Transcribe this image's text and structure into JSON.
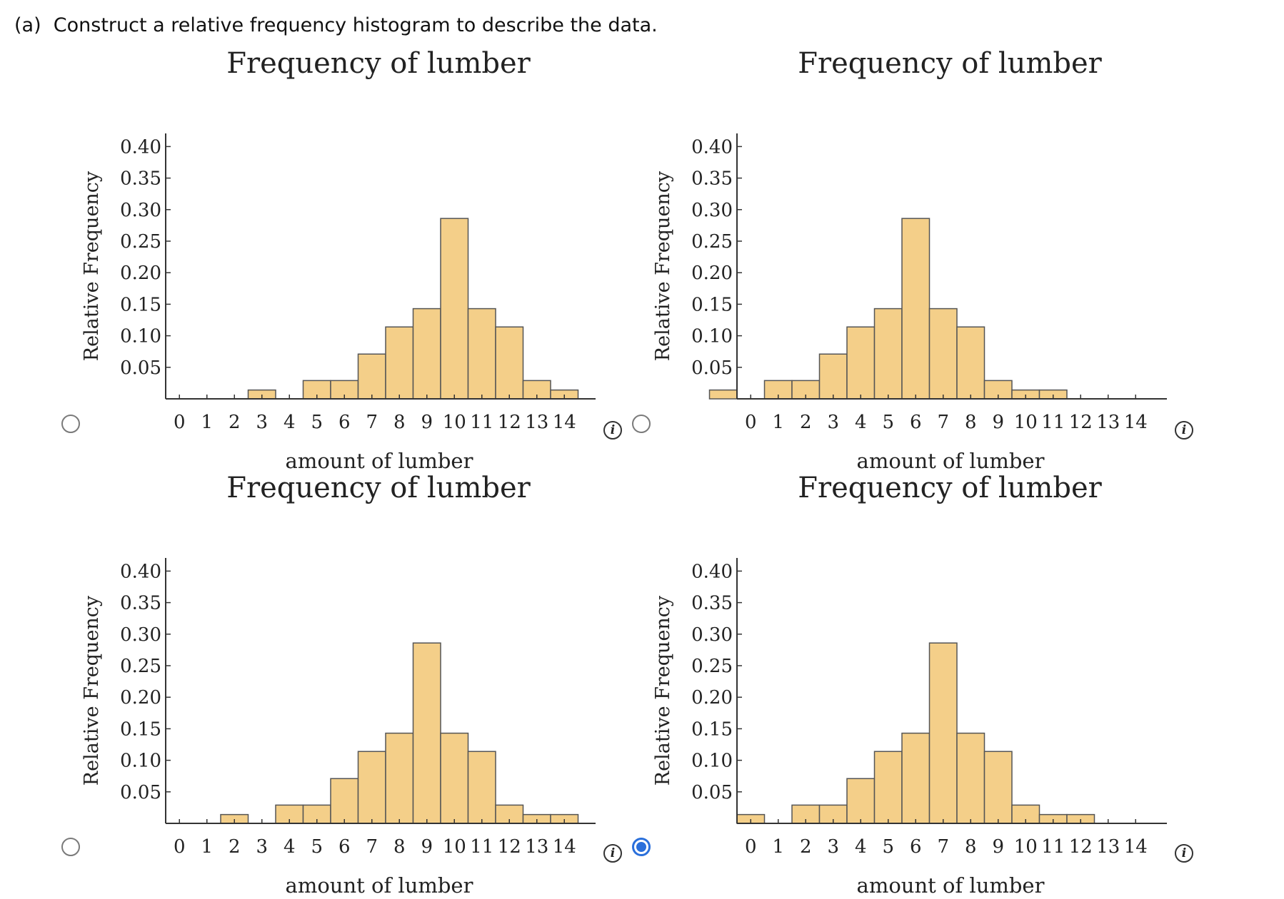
{
  "question": {
    "label": "(a)",
    "text": "Construct a relative frequency histogram to describe the data."
  },
  "selected_option": 3,
  "chart_data": [
    {
      "type": "bar",
      "title": "Frequency of lumber",
      "xlabel": "amount of lumber",
      "ylabel": "Relative Frequency",
      "x_ticks": [
        "0",
        "1",
        "2",
        "3",
        "4",
        "5",
        "6",
        "7",
        "8",
        "9",
        "10",
        "11",
        "12",
        "13",
        "14"
      ],
      "y_ticks": [
        "0.05",
        "0.10",
        "0.15",
        "0.20",
        "0.25",
        "0.30",
        "0.35",
        "0.40"
      ],
      "ylim": [
        0,
        0.42
      ],
      "bin_starts": [
        0,
        1,
        2,
        3,
        4,
        5,
        6,
        7,
        8,
        9,
        10,
        11,
        12,
        13,
        14
      ],
      "values": [
        0,
        0,
        0,
        0.014,
        0,
        0.029,
        0.029,
        0.071,
        0.114,
        0.143,
        0.286,
        0.143,
        0.114,
        0.029,
        0.014
      ],
      "bar_color": "#f4cf89",
      "grid": false
    },
    {
      "type": "bar",
      "title": "Frequency of lumber",
      "xlabel": "amount of lumber",
      "ylabel": "Relative Frequency",
      "x_ticks": [
        "0",
        "1",
        "2",
        "3",
        "4",
        "5",
        "6",
        "7",
        "8",
        "9",
        "10",
        "11",
        "12",
        "13",
        "14"
      ],
      "y_ticks": [
        "0.05",
        "0.10",
        "0.15",
        "0.20",
        "0.25",
        "0.30",
        "0.35",
        "0.40"
      ],
      "ylim": [
        0,
        0.42
      ],
      "bin_starts": [
        -1,
        0,
        1,
        2,
        3,
        4,
        5,
        6,
        7,
        8,
        9,
        10,
        11,
        12,
        13
      ],
      "values": [
        0.014,
        0,
        0.029,
        0.029,
        0.071,
        0.114,
        0.143,
        0.286,
        0.143,
        0.114,
        0.029,
        0.014,
        0.014,
        0,
        0
      ],
      "bar_color": "#f4cf89",
      "grid": false
    },
    {
      "type": "bar",
      "title": "Frequency of lumber",
      "xlabel": "amount of lumber",
      "ylabel": "Relative Frequency",
      "x_ticks": [
        "0",
        "1",
        "2",
        "3",
        "4",
        "5",
        "6",
        "7",
        "8",
        "9",
        "10",
        "11",
        "12",
        "13",
        "14"
      ],
      "y_ticks": [
        "0.05",
        "0.10",
        "0.15",
        "0.20",
        "0.25",
        "0.30",
        "0.35",
        "0.40"
      ],
      "ylim": [
        0,
        0.42
      ],
      "bin_starts": [
        0,
        1,
        2,
        3,
        4,
        5,
        6,
        7,
        8,
        9,
        10,
        11,
        12,
        13,
        14
      ],
      "values": [
        0,
        0,
        0.014,
        0,
        0.029,
        0.029,
        0.071,
        0.114,
        0.143,
        0.286,
        0.143,
        0.114,
        0.029,
        0.014,
        0.014
      ],
      "bar_color": "#f4cf89",
      "grid": false
    },
    {
      "type": "bar",
      "title": "Frequency of lumber",
      "xlabel": "amount of lumber",
      "ylabel": "Relative Frequency",
      "x_ticks": [
        "0",
        "1",
        "2",
        "3",
        "4",
        "5",
        "6",
        "7",
        "8",
        "9",
        "10",
        "11",
        "12",
        "13",
        "14"
      ],
      "y_ticks": [
        "0.05",
        "0.10",
        "0.15",
        "0.20",
        "0.25",
        "0.30",
        "0.35",
        "0.40"
      ],
      "ylim": [
        0,
        0.42
      ],
      "bin_starts": [
        -1,
        0,
        1,
        2,
        3,
        4,
        5,
        6,
        7,
        8,
        9,
        10,
        11,
        12,
        13
      ],
      "values": [
        0,
        0.014,
        0,
        0.029,
        0.029,
        0.071,
        0.114,
        0.143,
        0.286,
        0.143,
        0.114,
        0.029,
        0.014,
        0.014,
        0
      ],
      "bar_color": "#f4cf89",
      "grid": false
    }
  ]
}
